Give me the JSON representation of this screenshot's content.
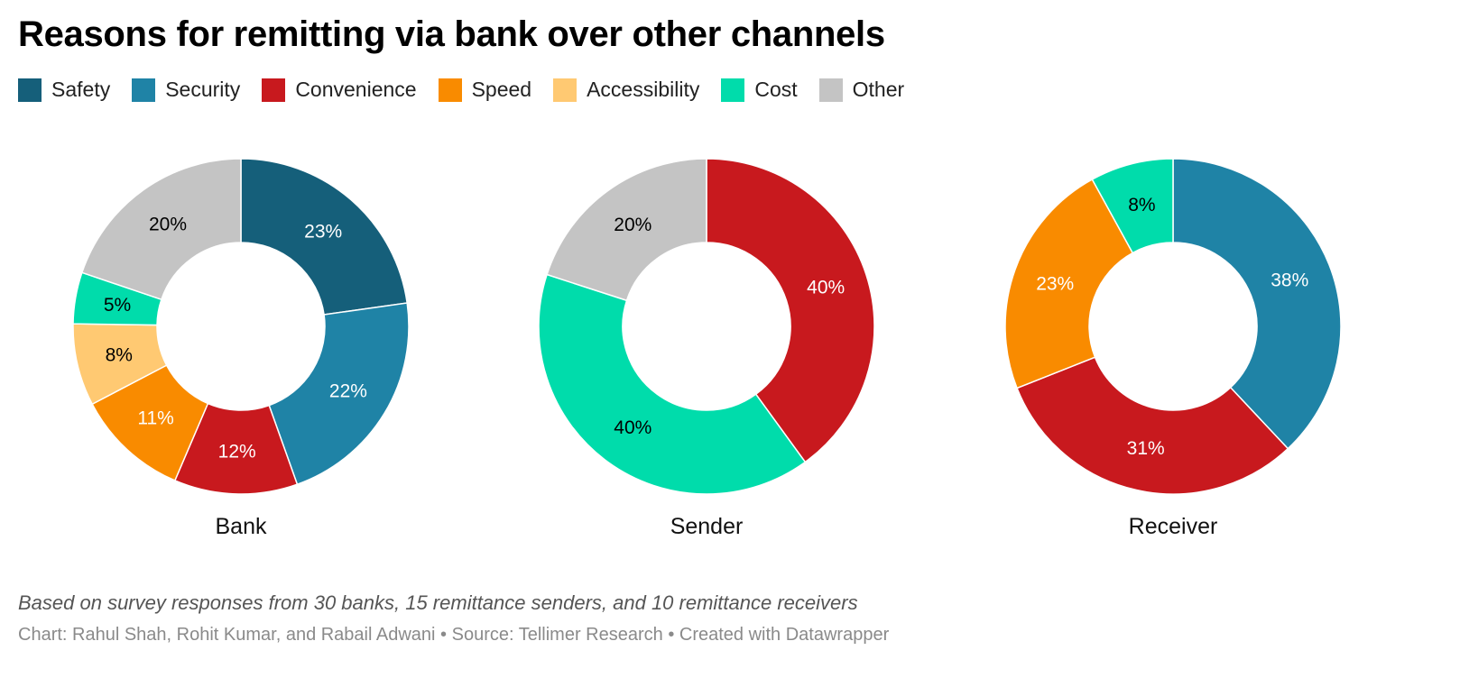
{
  "title": "Reasons for remitting via bank over other channels",
  "legend": [
    {
      "label": "Safety",
      "color": "#155f7a"
    },
    {
      "label": "Security",
      "color": "#1f83a6"
    },
    {
      "label": "Convenience",
      "color": "#c8191e"
    },
    {
      "label": "Speed",
      "color": "#f98b00"
    },
    {
      "label": "Accessibility",
      "color": "#ffc972"
    },
    {
      "label": "Cost",
      "color": "#00dcab"
    },
    {
      "label": "Other",
      "color": "#c4c4c4"
    }
  ],
  "chart_data": [
    {
      "type": "pie",
      "title": "Bank",
      "slices": [
        {
          "category": "Safety",
          "value": 23,
          "label": "23%",
          "label_color": "#ffffff"
        },
        {
          "category": "Security",
          "value": 22,
          "label": "22%",
          "label_color": "#ffffff"
        },
        {
          "category": "Convenience",
          "value": 12,
          "label": "12%",
          "label_color": "#ffffff"
        },
        {
          "category": "Speed",
          "value": 11,
          "label": "11%",
          "label_color": "#ffffff"
        },
        {
          "category": "Accessibility",
          "value": 8,
          "label": "8%",
          "label_color": "#000000"
        },
        {
          "category": "Cost",
          "value": 5,
          "label": "5%",
          "label_color": "#000000"
        },
        {
          "category": "Other",
          "value": 20,
          "label": "20%",
          "label_color": "#000000"
        }
      ]
    },
    {
      "type": "pie",
      "title": "Sender",
      "slices": [
        {
          "category": "Convenience",
          "value": 40,
          "label": "40%",
          "label_color": "#ffffff"
        },
        {
          "category": "Cost",
          "value": 40,
          "label": "40%",
          "label_color": "#000000"
        },
        {
          "category": "Other",
          "value": 20,
          "label": "20%",
          "label_color": "#000000"
        }
      ]
    },
    {
      "type": "pie",
      "title": "Receiver",
      "slices": [
        {
          "category": "Security",
          "value": 38,
          "label": "38%",
          "label_color": "#ffffff"
        },
        {
          "category": "Convenience",
          "value": 31,
          "label": "31%",
          "label_color": "#ffffff"
        },
        {
          "category": "Speed",
          "value": 23,
          "label": "23%",
          "label_color": "#ffffff"
        },
        {
          "category": "Cost",
          "value": 8,
          "label": "8%",
          "label_color": "#000000"
        }
      ]
    }
  ],
  "note": "Based on survey responses from 30 banks, 15 remittance senders, and 10 remittance receivers",
  "credit": "Chart: Rahul Shah, Rohit Kumar, and Rabail Adwani • Source: Tellimer Research • Created with Datawrapper"
}
